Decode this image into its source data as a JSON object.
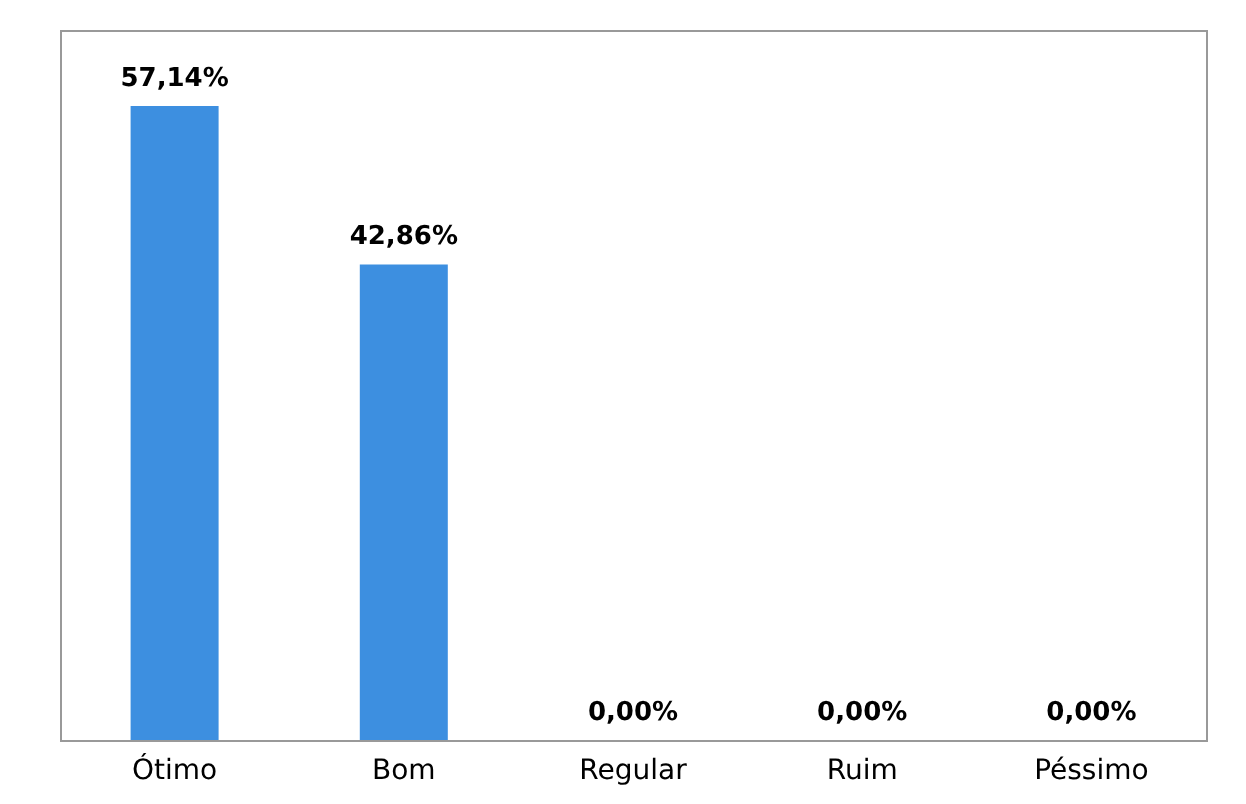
{
  "chart_data": {
    "type": "bar",
    "categories": [
      "Ótimo",
      "Bom",
      "Regular",
      "Ruim",
      "Péssimo"
    ],
    "values": [
      57.14,
      42.86,
      0,
      0,
      0
    ],
    "value_labels": [
      "57,14%",
      "42,86%",
      "0,00%",
      "0,00%",
      "0,00%"
    ],
    "color": "#3d8fe0",
    "grid": false
  }
}
